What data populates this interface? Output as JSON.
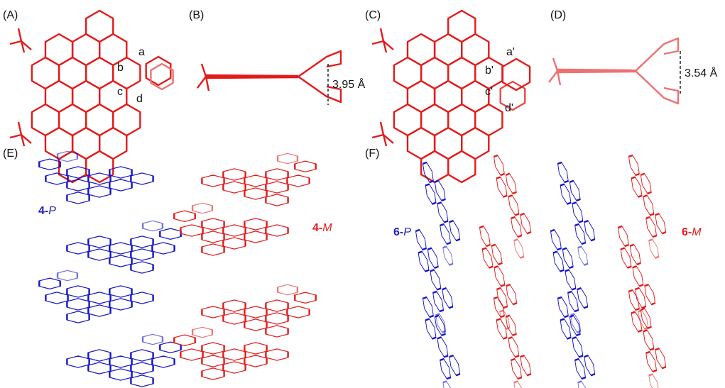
{
  "panels": [
    {
      "label": "(A)",
      "atoms": [
        "a",
        "b",
        "c",
        "d"
      ]
    },
    {
      "label": "(B)",
      "distance": "3.95 Å"
    },
    {
      "label": "(C)",
      "atoms": [
        "a'",
        "b'",
        "c'",
        "d'"
      ]
    },
    {
      "label": "(D)",
      "distance": "3.54 Å"
    },
    {
      "label": "(E)",
      "enantiomers": [
        {
          "number": "4-",
          "descriptor": "P"
        },
        {
          "number": "4-",
          "descriptor": "M"
        }
      ]
    },
    {
      "label": "(F)",
      "enantiomers": [
        {
          "number": "6-",
          "descriptor": "P"
        },
        {
          "number": "6-",
          "descriptor": "M"
        }
      ]
    }
  ]
}
